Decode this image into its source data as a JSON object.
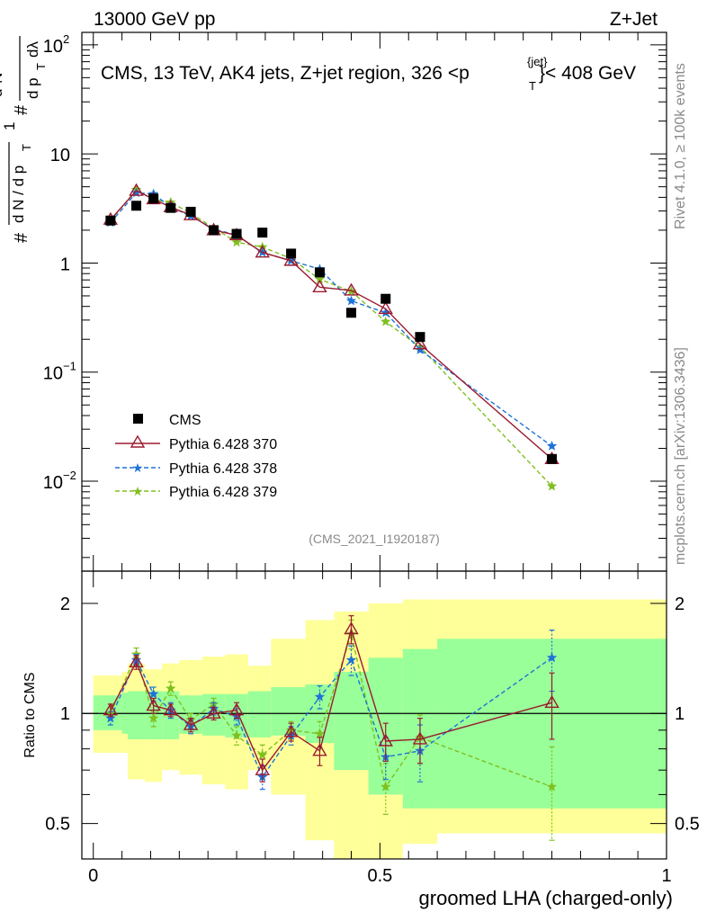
{
  "header": {
    "left": "13000 GeV pp",
    "right": "Z+Jet",
    "subtitle": "CMS, 13 TeV, AK4 jets, Z+jet region, 326 <p",
    "subtitle_sup": "{jet}",
    "subtitle_sub": "T",
    "subtitle_end": "}< 408 GeV",
    "analysis_id": "(CMS_2021_I1920187)",
    "side_rivet": "Rivet 4.1.0, ≥ 100k events",
    "side_mcplots": "mcplots.cern.ch [arXiv:1306.3436]"
  },
  "axes": {
    "ylabel_top": "1/(dN/dp_T) d²N/(dp_T dλ)",
    "ylabel_bottom": "Ratio to CMS",
    "xlabel": "groomed LHA (charged-only)"
  },
  "colors": {
    "data": "#000000",
    "p370": "#9b1b30",
    "p378": "#1e73d8",
    "p379": "#7fbf1f",
    "band_inner": "#99ff99",
    "band_outer": "#ffff99"
  },
  "chart_data": [
    {
      "type": "scatter",
      "title": "CMS, 13 TeV, AK4 jets, Z+jet region, 326 < pT(jet) < 408 GeV",
      "xlabel": "groomed LHA (charged-only)",
      "ylabel": "1/(dN/dp_T) d²N/(dp_T dλ)",
      "yscale": "log",
      "xlim": [
        -0.02,
        1.0
      ],
      "ylim": [
        0.0015,
        130
      ],
      "xticks": [
        "0",
        "0.5",
        "1"
      ],
      "yticks": [
        "10^-2",
        "10^-1",
        "1",
        "10",
        "10^2"
      ],
      "legend_position": "middle-left",
      "x": [
        0.03,
        0.075,
        0.105,
        0.135,
        0.17,
        0.21,
        0.25,
        0.295,
        0.345,
        0.395,
        0.45,
        0.51,
        0.57,
        0.8
      ],
      "series": [
        {
          "name": "CMS",
          "marker": "square",
          "values": [
            2.45,
            3.35,
            3.9,
            3.2,
            2.95,
            2.0,
            1.85,
            1.9,
            1.22,
            0.82,
            0.35,
            0.47,
            0.21,
            0.016
          ]
        },
        {
          "name": "Pythia 6.428 370",
          "marker": "triangle",
          "values": [
            2.5,
            4.6,
            3.85,
            3.25,
            2.75,
            2.0,
            1.8,
            1.25,
            1.05,
            0.6,
            0.56,
            0.38,
            0.18,
            0.016
          ]
        },
        {
          "name": "Pythia 6.428 378",
          "marker": "star",
          "values": [
            2.35,
            4.4,
            4.3,
            3.25,
            2.7,
            2.05,
            1.8,
            1.25,
            1.05,
            0.88,
            0.45,
            0.35,
            0.16,
            0.021
          ]
        },
        {
          "name": "Pythia 6.428 379",
          "marker": "star",
          "values": [
            2.45,
            4.7,
            3.8,
            3.6,
            2.85,
            2.1,
            1.55,
            1.4,
            1.1,
            0.71,
            0.55,
            0.29,
            0.17,
            0.009
          ]
        }
      ]
    },
    {
      "type": "line",
      "title": "Ratio to CMS",
      "xlabel": "groomed LHA (charged-only)",
      "ylabel": "Ratio to CMS",
      "yscale": "log",
      "xlim": [
        -0.02,
        1.0
      ],
      "ylim": [
        0.4,
        2.45
      ],
      "xticks": [
        "0",
        "0.5",
        "1"
      ],
      "yticks": [
        "0.5",
        "1",
        "2"
      ],
      "reference_line": 1,
      "x": [
        0.03,
        0.075,
        0.105,
        0.135,
        0.17,
        0.21,
        0.25,
        0.295,
        0.345,
        0.395,
        0.45,
        0.51,
        0.57,
        0.8
      ],
      "band_edges": [
        0,
        0.05,
        0.06,
        0.09,
        0.12,
        0.15,
        0.19,
        0.23,
        0.27,
        0.31,
        0.37,
        0.42,
        0.48,
        0.54,
        0.6,
        1.0
      ],
      "band_inner_lo": [
        0.9,
        0.88,
        0.85,
        0.85,
        0.85,
        0.88,
        0.87,
        0.86,
        0.86,
        0.87,
        0.83,
        0.7,
        0.6,
        0.55,
        0.55
      ],
      "band_inner_hi": [
        1.12,
        1.14,
        1.15,
        1.15,
        1.15,
        1.12,
        1.13,
        1.13,
        1.15,
        1.18,
        1.2,
        1.3,
        1.42,
        1.5,
        1.6
      ],
      "band_outer_lo": [
        0.78,
        0.78,
        0.66,
        0.65,
        0.7,
        0.68,
        0.64,
        0.62,
        0.7,
        0.6,
        0.45,
        0.38,
        0.35,
        0.44,
        0.47
      ],
      "band_outer_hi": [
        1.27,
        1.3,
        1.37,
        1.32,
        1.37,
        1.4,
        1.43,
        1.45,
        1.35,
        1.6,
        1.8,
        1.9,
        2.0,
        2.05,
        2.05
      ],
      "series": [
        {
          "name": "Pythia 6.428 370",
          "values": [
            1.02,
            1.38,
            1.05,
            1.02,
            0.93,
            1.0,
            1.02,
            0.7,
            0.89,
            0.79,
            1.7,
            0.84,
            0.85,
            1.07
          ],
          "errors": [
            0.04,
            0.06,
            0.05,
            0.04,
            0.04,
            0.04,
            0.05,
            0.05,
            0.05,
            0.07,
            0.15,
            0.1,
            0.12,
            0.22
          ]
        },
        {
          "name": "Pythia 6.428 378",
          "values": [
            0.97,
            1.4,
            1.13,
            1.02,
            0.92,
            1.03,
            0.98,
            0.67,
            0.87,
            1.11,
            1.4,
            0.76,
            0.79,
            1.42
          ],
          "errors": [
            0.04,
            0.05,
            0.05,
            0.05,
            0.04,
            0.04,
            0.05,
            0.05,
            0.05,
            0.08,
            0.13,
            0.1,
            0.14,
            0.27
          ]
        },
        {
          "name": "Pythia 6.428 379",
          "values": [
            1.0,
            1.45,
            0.97,
            1.17,
            0.96,
            1.06,
            0.87,
            0.77,
            0.9,
            0.88,
            1.65,
            0.63,
            0.86,
            0.63
          ],
          "errors": [
            0.04,
            0.06,
            0.05,
            0.05,
            0.04,
            0.04,
            0.05,
            0.05,
            0.05,
            0.07,
            0.15,
            0.1,
            0.13,
            0.18
          ]
        }
      ]
    }
  ]
}
